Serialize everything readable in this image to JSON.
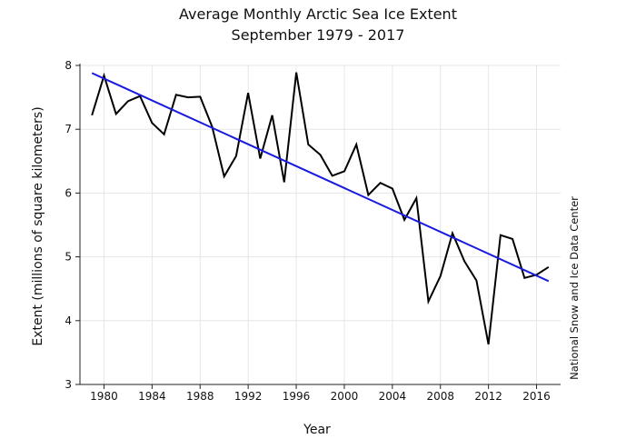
{
  "chart_data": {
    "type": "line",
    "title": "Average Monthly Arctic Sea Ice Extent",
    "subtitle": "September 1979 - 2017",
    "xlabel": "Year",
    "ylabel": "Extent (millions of square kilometers)",
    "credit": "National Snow and Ice Data Center",
    "xlim": [
      1978,
      2018
    ],
    "ylim": [
      3,
      8
    ],
    "x_ticks": [
      1980,
      1984,
      1988,
      1992,
      1996,
      2000,
      2004,
      2008,
      2012,
      2016
    ],
    "y_ticks": [
      3,
      4,
      5,
      6,
      7,
      8
    ],
    "grid": true,
    "legend": "none",
    "series": [
      {
        "color": "#000000",
        "x": [
          1979,
          1980,
          1981,
          1982,
          1983,
          1984,
          1985,
          1986,
          1987,
          1988,
          1989,
          1990,
          1991,
          1992,
          1993,
          1994,
          1995,
          1996,
          1997,
          1998,
          1999,
          2000,
          2001,
          2002,
          2003,
          2004,
          2005,
          2006,
          2007,
          2008,
          2009,
          2010,
          2011,
          2012,
          2013,
          2014,
          2015,
          2016,
          2017
        ],
        "y": [
          7.22,
          7.84,
          7.24,
          7.44,
          7.52,
          7.1,
          6.92,
          7.54,
          7.5,
          7.51,
          7.04,
          6.26,
          6.58,
          7.57,
          6.54,
          7.22,
          6.17,
          7.89,
          6.76,
          6.6,
          6.27,
          6.34,
          6.76,
          5.97,
          6.16,
          6.07,
          5.58,
          5.92,
          4.3,
          4.7,
          5.37,
          4.93,
          4.63,
          3.63,
          5.34,
          5.28,
          4.67,
          4.72,
          4.84
        ]
      },
      {
        "color": "#1a1adf",
        "x": [
          1979,
          2017
        ],
        "y": [
          7.88,
          4.62
        ]
      }
    ]
  }
}
